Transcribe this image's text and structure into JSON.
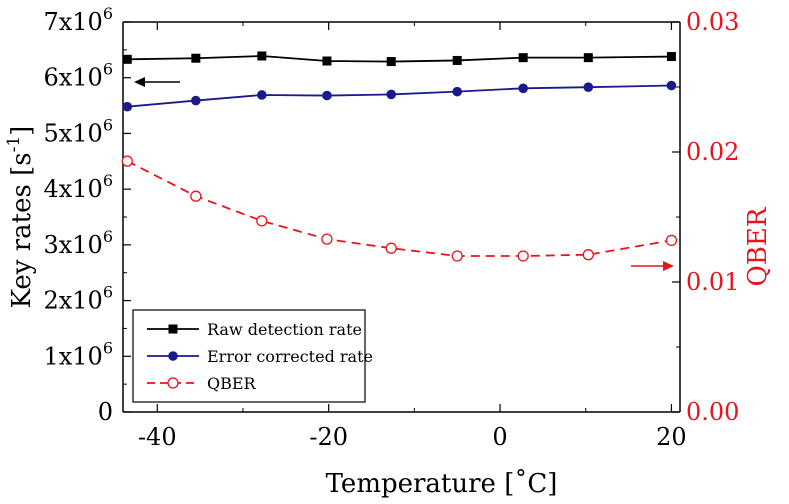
{
  "chart_data": {
    "type": "line",
    "xlabel": "Temperature [˚C]",
    "ylabel_left": "Key rates [s",
    "ylabel_left_exp": "-1",
    "ylabel_left_close": "]",
    "ylabel_right": "QBER",
    "xlim": [
      -44,
      21
    ],
    "ylim_left": [
      0,
      7000000
    ],
    "ylim_right": [
      0.0,
      0.03
    ],
    "x_ticks": [
      -40,
      -20,
      0,
      20
    ],
    "x_tick_labels": [
      "-40",
      "-20",
      "0",
      "20"
    ],
    "y_left_ticks": [
      0,
      1000000,
      2000000,
      3000000,
      4000000,
      5000000,
      6000000,
      7000000
    ],
    "y_left_tick_labels": [
      {
        "base": "0",
        "exp": ""
      },
      {
        "base": "1x10",
        "exp": "6"
      },
      {
        "base": "2x10",
        "exp": "6"
      },
      {
        "base": "3x10",
        "exp": "6"
      },
      {
        "base": "4x10",
        "exp": "6"
      },
      {
        "base": "5x10",
        "exp": "6"
      },
      {
        "base": "6x10",
        "exp": "6"
      },
      {
        "base": "7x10",
        "exp": "6"
      }
    ],
    "y_right_ticks": [
      0.0,
      0.01,
      0.02,
      0.03
    ],
    "y_right_tick_labels": [
      "0.00",
      "0.01",
      "0.02",
      "0.03"
    ],
    "x": [
      -43.5,
      -35.5,
      -27.8,
      -20.2,
      -12.7,
      -5.0,
      2.7,
      10.3,
      20.0
    ],
    "series": [
      {
        "name": "Raw detection rate",
        "axis": "left",
        "color": "#000000",
        "marker": "square",
        "line_style": "solid",
        "values": [
          6330000,
          6350000,
          6390000,
          6300000,
          6290000,
          6310000,
          6360000,
          6360000,
          6380000
        ]
      },
      {
        "name": "Error corrected rate",
        "axis": "left",
        "color": "#1a1a8c",
        "marker": "circle",
        "line_style": "solid",
        "values": [
          5480000,
          5590000,
          5690000,
          5680000,
          5700000,
          5750000,
          5810000,
          5830000,
          5860000
        ]
      },
      {
        "name": "QBER",
        "axis": "right",
        "color": "#e8141c",
        "marker": "open-circle",
        "line_style": "dashed",
        "values": [
          0.0193,
          0.0166,
          0.0147,
          0.0133,
          0.0126,
          0.012,
          0.012,
          0.0121,
          0.0132
        ]
      }
    ],
    "annotations": [
      {
        "type": "arrow",
        "direction": "left",
        "points_to": "left-axis",
        "color": "#000000"
      },
      {
        "type": "arrow",
        "direction": "right",
        "points_to": "right-axis",
        "color": "#e8141c"
      }
    ],
    "legend": {
      "position": "bottom-left"
    },
    "grid": false,
    "colors": {
      "right_axis": "#e8141c",
      "left_axis": "#000000"
    }
  }
}
